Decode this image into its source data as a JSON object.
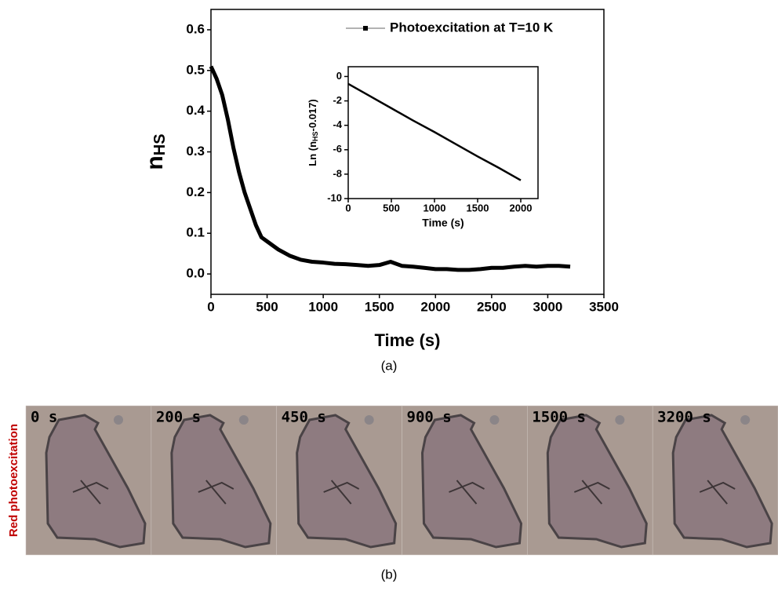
{
  "chart_data": [
    {
      "type": "line",
      "xlabel": "Time (s)",
      "ylabel": [
        "n",
        "HS"
      ],
      "x": [
        0,
        50,
        100,
        150,
        200,
        250,
        300,
        350,
        400,
        450,
        500,
        600,
        700,
        800,
        900,
        1000,
        1100,
        1200,
        1300,
        1400,
        1500,
        1600,
        1700,
        1800,
        1900,
        2000,
        2100,
        2200,
        2300,
        2400,
        2500,
        2600,
        2700,
        2800,
        2900,
        3000,
        3100,
        3200
      ],
      "series": [
        {
          "name": "Photoexcitation at T=10 K",
          "color": "#000000",
          "values": [
            0.51,
            0.48,
            0.44,
            0.38,
            0.31,
            0.25,
            0.2,
            0.16,
            0.12,
            0.09,
            0.08,
            0.06,
            0.045,
            0.035,
            0.03,
            0.028,
            0.025,
            0.024,
            0.022,
            0.02,
            0.022,
            0.03,
            0.02,
            0.018,
            0.015,
            0.012,
            0.012,
            0.01,
            0.01,
            0.012,
            0.015,
            0.015,
            0.018,
            0.02,
            0.018,
            0.02,
            0.02,
            0.018
          ]
        }
      ],
      "xlim": [
        0,
        3500
      ],
      "xticks": [
        0,
        500,
        1000,
        1500,
        2000,
        2500,
        3000,
        3500
      ],
      "ylim": [
        -0.05,
        0.65
      ],
      "yticks": [
        {
          "value": 0,
          "label": "0.0"
        },
        0.1,
        0.2,
        0.3,
        0.4,
        0.5,
        0.6
      ],
      "legend": "upper right"
    },
    {
      "type": "line",
      "xlabel": "Time (s)",
      "ylabel": [
        "Ln (n",
        "HS",
        "-0.017)"
      ],
      "x": [
        0,
        250,
        500,
        750,
        1000,
        1250,
        1500,
        1750,
        2000
      ],
      "values": [
        -0.6,
        -1.6,
        -2.6,
        -3.6,
        -4.55,
        -5.55,
        -6.55,
        -7.5,
        -8.5
      ],
      "color": "#000000",
      "xlim": [
        0,
        2200
      ],
      "xticks": [
        0,
        500,
        1000,
        1500,
        2000
      ],
      "ylim": [
        -10,
        0.8
      ],
      "yticks": [
        -10,
        -8,
        -6,
        -4,
        -2,
        0
      ]
    }
  ],
  "captions": [
    "(a)",
    "(b)"
  ],
  "image_strip": {
    "side_label": "Red photoexcitation",
    "frames": [
      "0 s",
      "200 s",
      "450 s",
      "900 s",
      "1500 s",
      "3200 s"
    ]
  }
}
